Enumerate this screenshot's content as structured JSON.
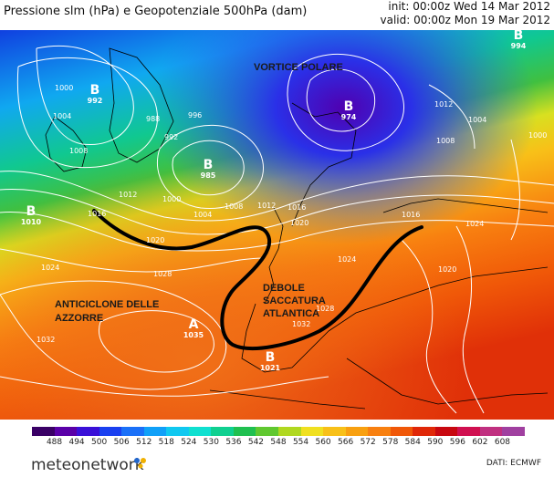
{
  "header": {
    "title": "Pressione slm (hPa) e Geopotenziale 500hPa (dam)",
    "init": "init: 00:00z Wed 14 Mar 2012",
    "valid": "valid: 00:00z Mon 19 Mar 2012"
  },
  "map": {
    "region_labels": {
      "vortex": "VORTICE POLARE",
      "azores_line1": "ANTICICLONE DELLE",
      "azores_line2": "AZZORRE",
      "trough_line1": "DEBOLE",
      "trough_line2": "SACCATURA",
      "trough_line3": "ATLANTICA"
    },
    "centers": [
      {
        "letter": "B",
        "value": "992",
        "color": "#ffffff"
      },
      {
        "letter": "B",
        "value": "985",
        "color": "#ffffff"
      },
      {
        "letter": "B",
        "value": "974",
        "color": "#ffffff"
      },
      {
        "letter": "B",
        "value": "994",
        "color": "#ffffff"
      },
      {
        "letter": "B",
        "value": "1010",
        "color": "#ffffff"
      },
      {
        "letter": "A",
        "value": "1035",
        "color": "#ffffff"
      },
      {
        "letter": "B",
        "value": "1021",
        "color": "#ffffff"
      }
    ],
    "isobar_labels": [
      "1000",
      "1004",
      "1008",
      "1012",
      "1016",
      "1020",
      "1024",
      "1028",
      "1032",
      "996",
      "992",
      "988",
      "1000",
      "1004",
      "1008",
      "1012",
      "1016",
      "1020",
      "1024",
      "1028",
      "1032",
      "1016",
      "1020",
      "1024",
      "1004",
      "1008",
      "1012",
      "1000"
    ],
    "colors": {
      "trough_line": "#000000",
      "isobar": "#ffffff",
      "coast": "#000000"
    }
  },
  "colorbar": {
    "ticks": [
      "488",
      "494",
      "500",
      "506",
      "512",
      "518",
      "524",
      "530",
      "536",
      "542",
      "548",
      "554",
      "560",
      "566",
      "572",
      "578",
      "584",
      "590",
      "596",
      "602",
      "608"
    ],
    "colors": [
      "#3a0066",
      "#5a00a8",
      "#3a10d8",
      "#1a40f0",
      "#1a70f8",
      "#10a0f8",
      "#10c8f0",
      "#10e0d0",
      "#10d090",
      "#20c050",
      "#60c830",
      "#b0d820",
      "#f0e020",
      "#f8c018",
      "#f8a010",
      "#f88010",
      "#f05808",
      "#e02808",
      "#c80810",
      "#d01050",
      "#c03080",
      "#a040a0"
    ]
  },
  "footer": {
    "logo_text": "meteonetwork",
    "source": "DATI: ECMWF"
  }
}
